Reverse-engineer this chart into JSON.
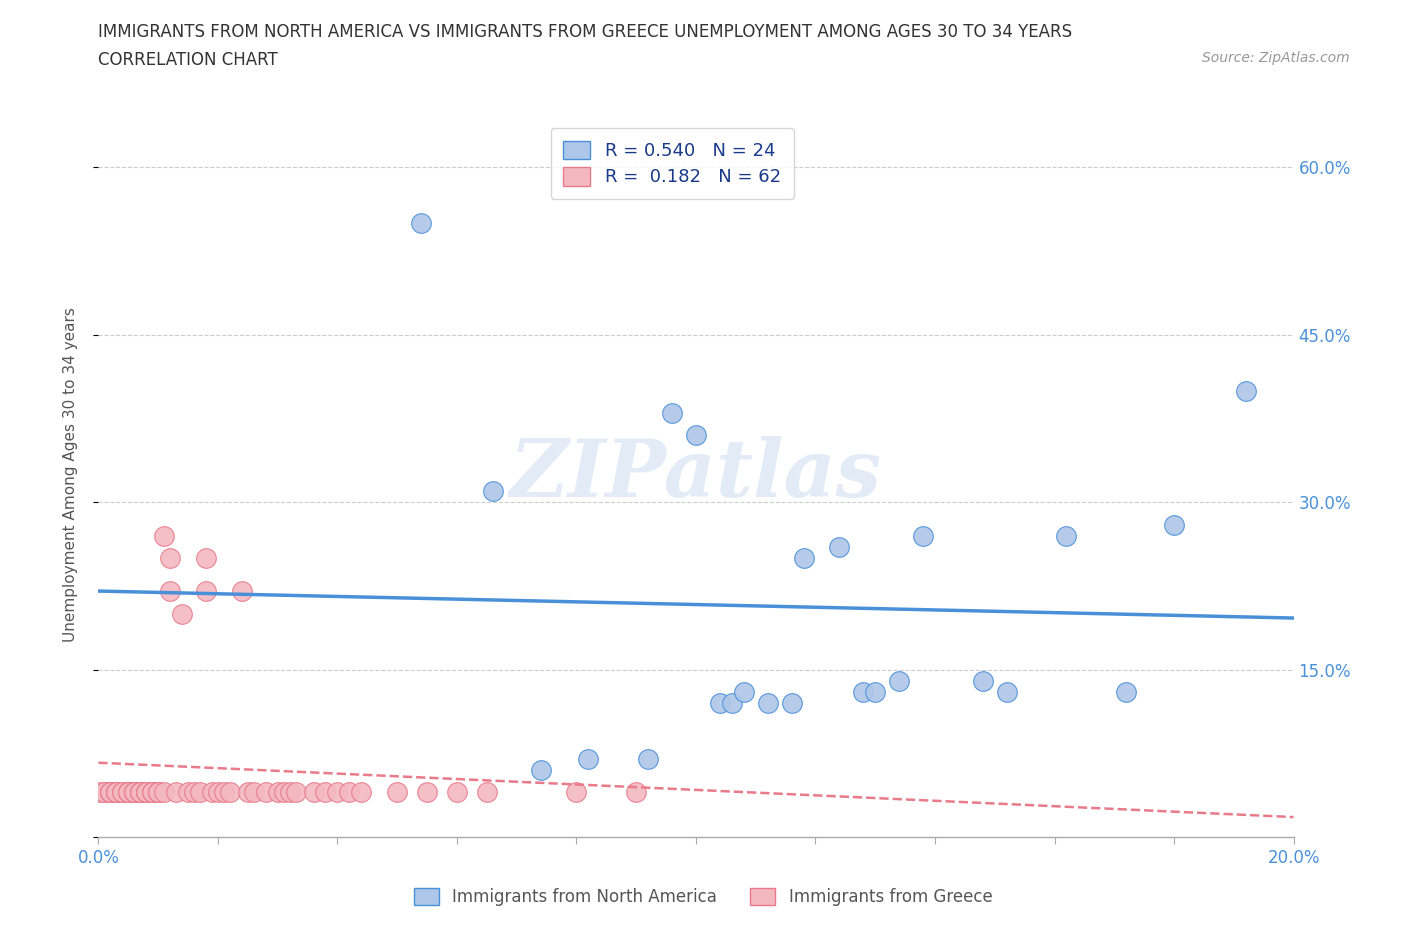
{
  "title_line1": "IMMIGRANTS FROM NORTH AMERICA VS IMMIGRANTS FROM GREECE UNEMPLOYMENT AMONG AGES 30 TO 34 YEARS",
  "title_line2": "CORRELATION CHART",
  "source_text": "Source: ZipAtlas.com",
  "ylabel": "Unemployment Among Ages 30 to 34 years",
  "xlim": [
    0.0,
    0.2
  ],
  "ylim": [
    0.0,
    0.65
  ],
  "x_ticks": [
    0.0,
    0.02,
    0.04,
    0.06,
    0.08,
    0.1,
    0.12,
    0.14,
    0.16,
    0.18,
    0.2
  ],
  "y_ticks": [
    0.0,
    0.15,
    0.3,
    0.45,
    0.6
  ],
  "watermark": "ZIPatlas",
  "blue_color": "#aec6e8",
  "pink_color": "#f4b8c1",
  "blue_line_color": "#4a90d9",
  "pink_line_color": "#e87a8a",
  "R_blue": 0.54,
  "N_blue": 24,
  "R_pink": 0.182,
  "N_pink": 62,
  "blue_scatter_x": [
    0.054,
    0.066,
    0.074,
    0.082,
    0.092,
    0.096,
    0.1,
    0.104,
    0.106,
    0.108,
    0.112,
    0.116,
    0.118,
    0.124,
    0.128,
    0.13,
    0.134,
    0.138,
    0.148,
    0.152,
    0.162,
    0.172,
    0.18,
    0.192
  ],
  "blue_scatter_y": [
    0.55,
    0.31,
    0.06,
    0.07,
    0.07,
    0.38,
    0.36,
    0.12,
    0.12,
    0.13,
    0.12,
    0.12,
    0.25,
    0.26,
    0.13,
    0.13,
    0.14,
    0.27,
    0.14,
    0.13,
    0.27,
    0.13,
    0.28,
    0.4
  ],
  "pink_scatter_x": [
    0.0,
    0.001,
    0.001,
    0.002,
    0.002,
    0.002,
    0.003,
    0.003,
    0.003,
    0.004,
    0.004,
    0.005,
    0.005,
    0.005,
    0.006,
    0.006,
    0.006,
    0.007,
    0.007,
    0.007,
    0.008,
    0.008,
    0.008,
    0.009,
    0.009,
    0.01,
    0.01,
    0.01,
    0.011,
    0.011,
    0.012,
    0.012,
    0.013,
    0.014,
    0.015,
    0.016,
    0.017,
    0.018,
    0.018,
    0.019,
    0.02,
    0.021,
    0.022,
    0.024,
    0.025,
    0.026,
    0.028,
    0.03,
    0.031,
    0.032,
    0.033,
    0.036,
    0.038,
    0.04,
    0.042,
    0.044,
    0.05,
    0.055,
    0.06,
    0.065,
    0.08,
    0.09
  ],
  "pink_scatter_y": [
    0.04,
    0.04,
    0.04,
    0.04,
    0.04,
    0.04,
    0.04,
    0.04,
    0.04,
    0.04,
    0.04,
    0.04,
    0.04,
    0.04,
    0.04,
    0.04,
    0.04,
    0.04,
    0.04,
    0.04,
    0.04,
    0.04,
    0.04,
    0.04,
    0.04,
    0.04,
    0.04,
    0.04,
    0.04,
    0.27,
    0.22,
    0.25,
    0.04,
    0.2,
    0.04,
    0.04,
    0.04,
    0.22,
    0.25,
    0.04,
    0.04,
    0.04,
    0.04,
    0.22,
    0.04,
    0.04,
    0.04,
    0.04,
    0.04,
    0.04,
    0.04,
    0.04,
    0.04,
    0.04,
    0.04,
    0.04,
    0.04,
    0.04,
    0.04,
    0.04,
    0.04,
    0.04
  ]
}
